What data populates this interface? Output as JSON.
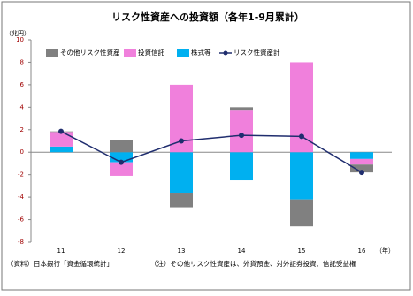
{
  "chart_data": {
    "type": "stacked-bar-line",
    "title": "リスク性資産への投資額（各年1-9月累計）",
    "y_axis_label": "（兆円）",
    "x_axis_label": "（年）",
    "footnotes": [
      "（資料）日本銀行「資金循環統計」",
      "（注）その他リスク性資産は、外貨預金、対外証券投資、信託受益権"
    ],
    "categories": [
      "11",
      "12",
      "13",
      "14",
      "15",
      "16"
    ],
    "series": [
      {
        "name": "その他リスク性資産",
        "color": "#808080",
        "kind": "bar",
        "values": [
          0.05,
          1.1,
          -1.3,
          0.3,
          -2.4,
          -0.7
        ]
      },
      {
        "name": "投資信託",
        "color": "#f080dc",
        "kind": "bar",
        "values": [
          1.3,
          -1.2,
          6.0,
          3.7,
          8.0,
          -0.5
        ]
      },
      {
        "name": "株式等",
        "color": "#00b0f0",
        "kind": "bar",
        "values": [
          0.5,
          -0.9,
          -3.6,
          -2.5,
          -4.2,
          -0.6
        ]
      },
      {
        "name": "リスク性資産計",
        "color": "#1f2d6e",
        "kind": "line",
        "values": [
          1.85,
          -0.9,
          1.0,
          1.5,
          1.4,
          -1.8
        ]
      }
    ],
    "stack_order": [
      2,
      1,
      0
    ],
    "ylim": [
      -8,
      10
    ],
    "yticks": [
      -8,
      -6,
      -4,
      -2,
      0,
      2,
      4,
      6,
      8,
      10
    ],
    "grid": false
  }
}
